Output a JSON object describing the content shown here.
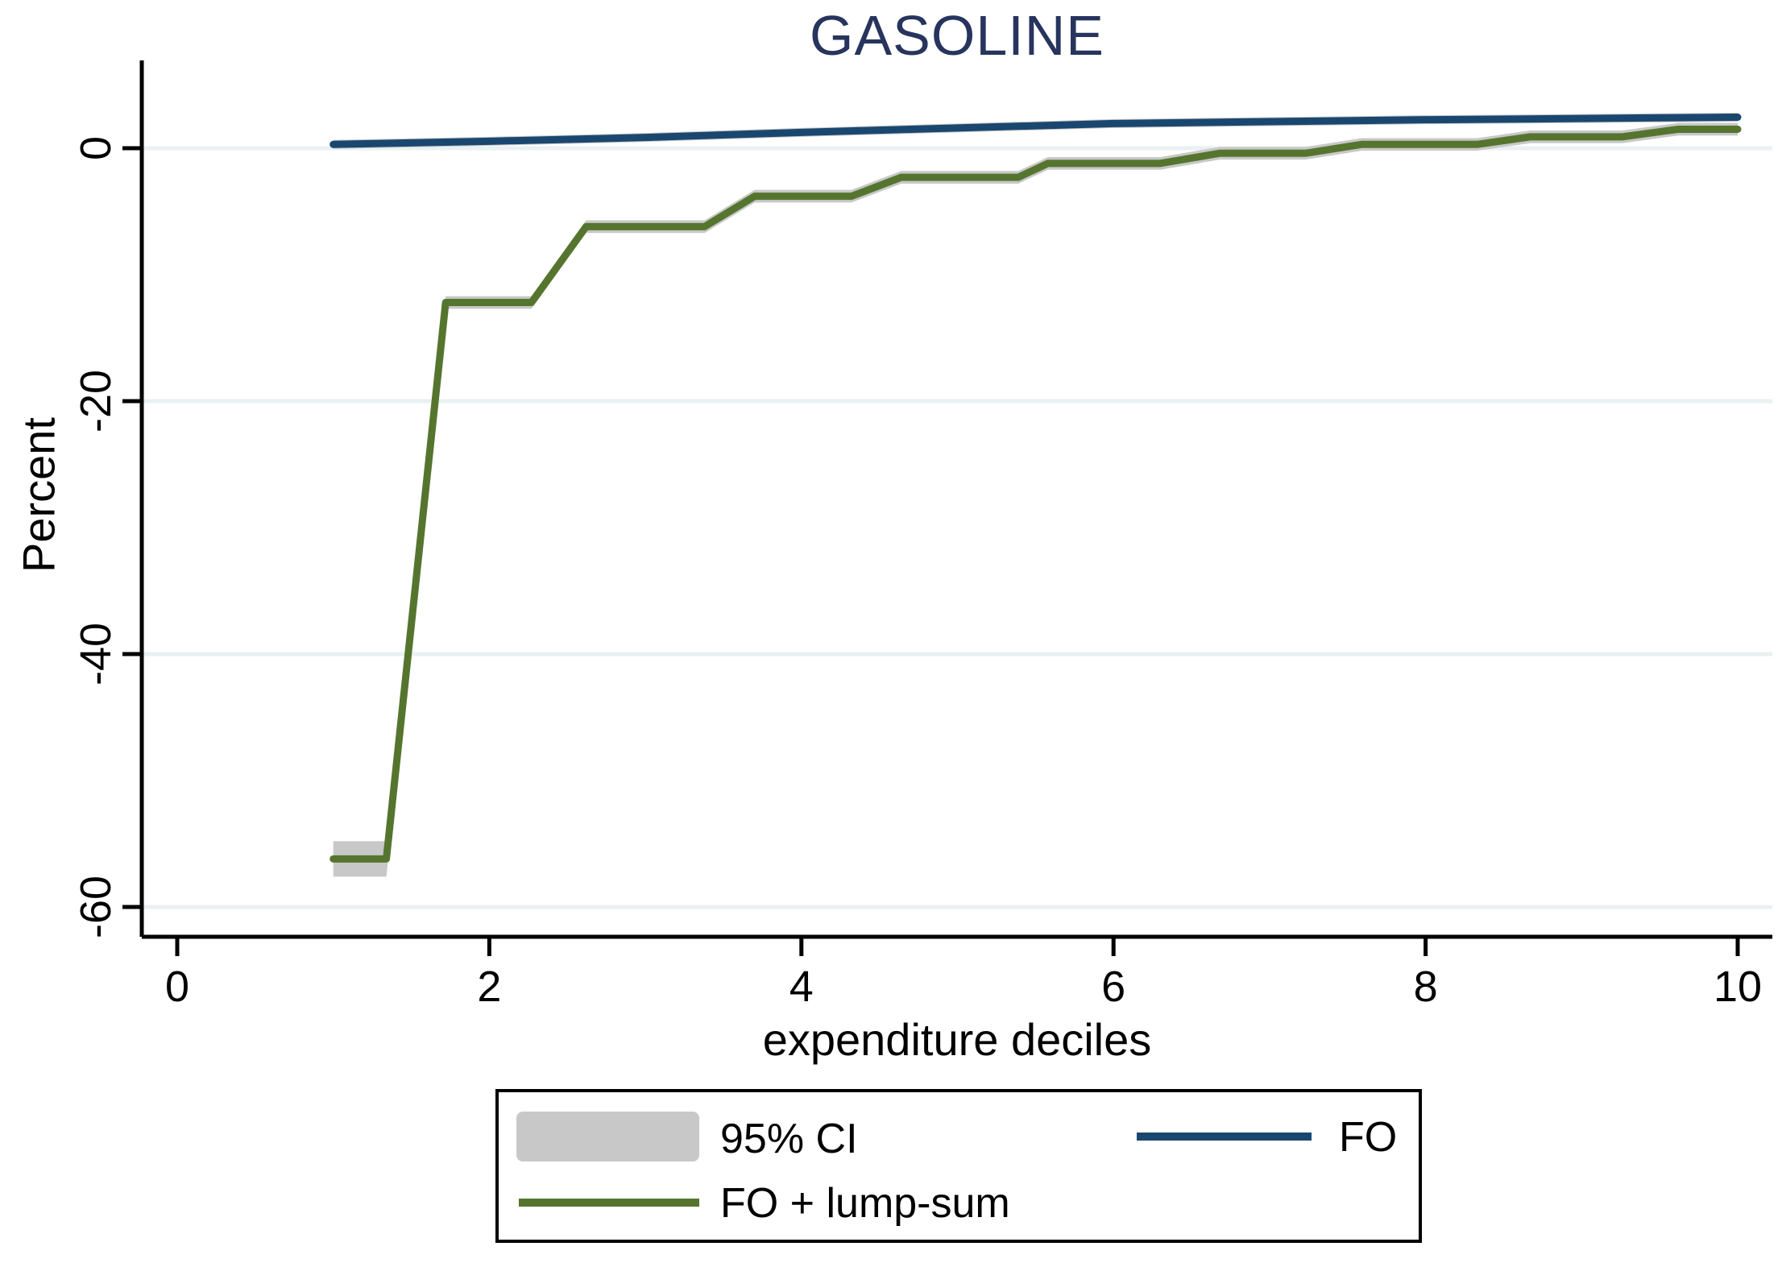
{
  "title": "GASOLINE",
  "colors": {
    "title": "#27345d",
    "fo_line": "#1a476f",
    "lump_line": "#55752f",
    "ci_band": "#c8c8c8",
    "gridline": "#e9f1f2",
    "axis": "#000000"
  },
  "axes": {
    "x_label": "expenditure deciles",
    "y_label": "Percent",
    "x_ticks": [
      0,
      2,
      4,
      6,
      8,
      10
    ],
    "y_ticks": [
      0,
      -20,
      -40,
      -60
    ],
    "x_range": [
      -0.23,
      10.22
    ],
    "y_range": [
      -62.3,
      6.9
    ]
  },
  "legend": {
    "position": "bottom",
    "items": [
      {
        "label": "95% CI",
        "swatch": "band",
        "color": "#c8c8c8"
      },
      {
        "label": "FO",
        "swatch": "line",
        "color": "#1a476f"
      },
      {
        "label": "FO + lump-sum",
        "swatch": "line",
        "color": "#55752f"
      }
    ]
  },
  "chart_data": {
    "type": "line",
    "title": "GASOLINE",
    "xlabel": "expenditure deciles",
    "ylabel": "Percent",
    "xlim": [
      -0.23,
      10.22
    ],
    "ylim": [
      -62.3,
      6.9
    ],
    "grid": "horizontal",
    "x_ticks": [
      0,
      2,
      4,
      6,
      8,
      10
    ],
    "y_ticks": [
      0,
      -20,
      -40,
      -60
    ],
    "ci_color": "#c8c8c8",
    "series": [
      {
        "name": "FO",
        "color": "#1a476f",
        "width": 9,
        "x": [
          1,
          2,
          3,
          4,
          5,
          6,
          7,
          8,
          9,
          10
        ],
        "y": [
          0.3,
          0.55,
          0.85,
          1.25,
          1.6,
          1.95,
          2.1,
          2.25,
          2.35,
          2.45
        ],
        "ci_delta": [
          0.35,
          0.35,
          0.35,
          0.35,
          0.35,
          0.35,
          0.35,
          0.35,
          0.35,
          0.35
        ]
      },
      {
        "name": "FO + lump-sum",
        "color": "#55752f",
        "width": 9,
        "x": [
          1.0,
          1.34,
          1.72,
          2.27,
          2.62,
          3.38,
          3.7,
          4.32,
          4.64,
          5.39,
          5.58,
          6.3,
          6.68,
          7.23,
          7.59,
          8.33,
          8.67,
          9.26,
          9.62,
          10.0
        ],
        "y": [
          -56.2,
          -56.2,
          -12.2,
          -12.2,
          -6.2,
          -6.2,
          -3.8,
          -3.8,
          -2.3,
          -2.3,
          -1.2,
          -1.2,
          -0.4,
          -0.4,
          0.3,
          0.3,
          0.9,
          0.9,
          1.5,
          1.5
        ],
        "ci_delta": [
          1.4,
          1.4,
          0.5,
          0.5,
          0.5,
          0.5,
          0.5,
          0.5,
          0.5,
          0.5,
          0.5,
          0.5,
          0.5,
          0.5,
          0.5,
          0.5,
          0.5,
          0.5,
          0.5,
          0.5
        ]
      }
    ]
  }
}
